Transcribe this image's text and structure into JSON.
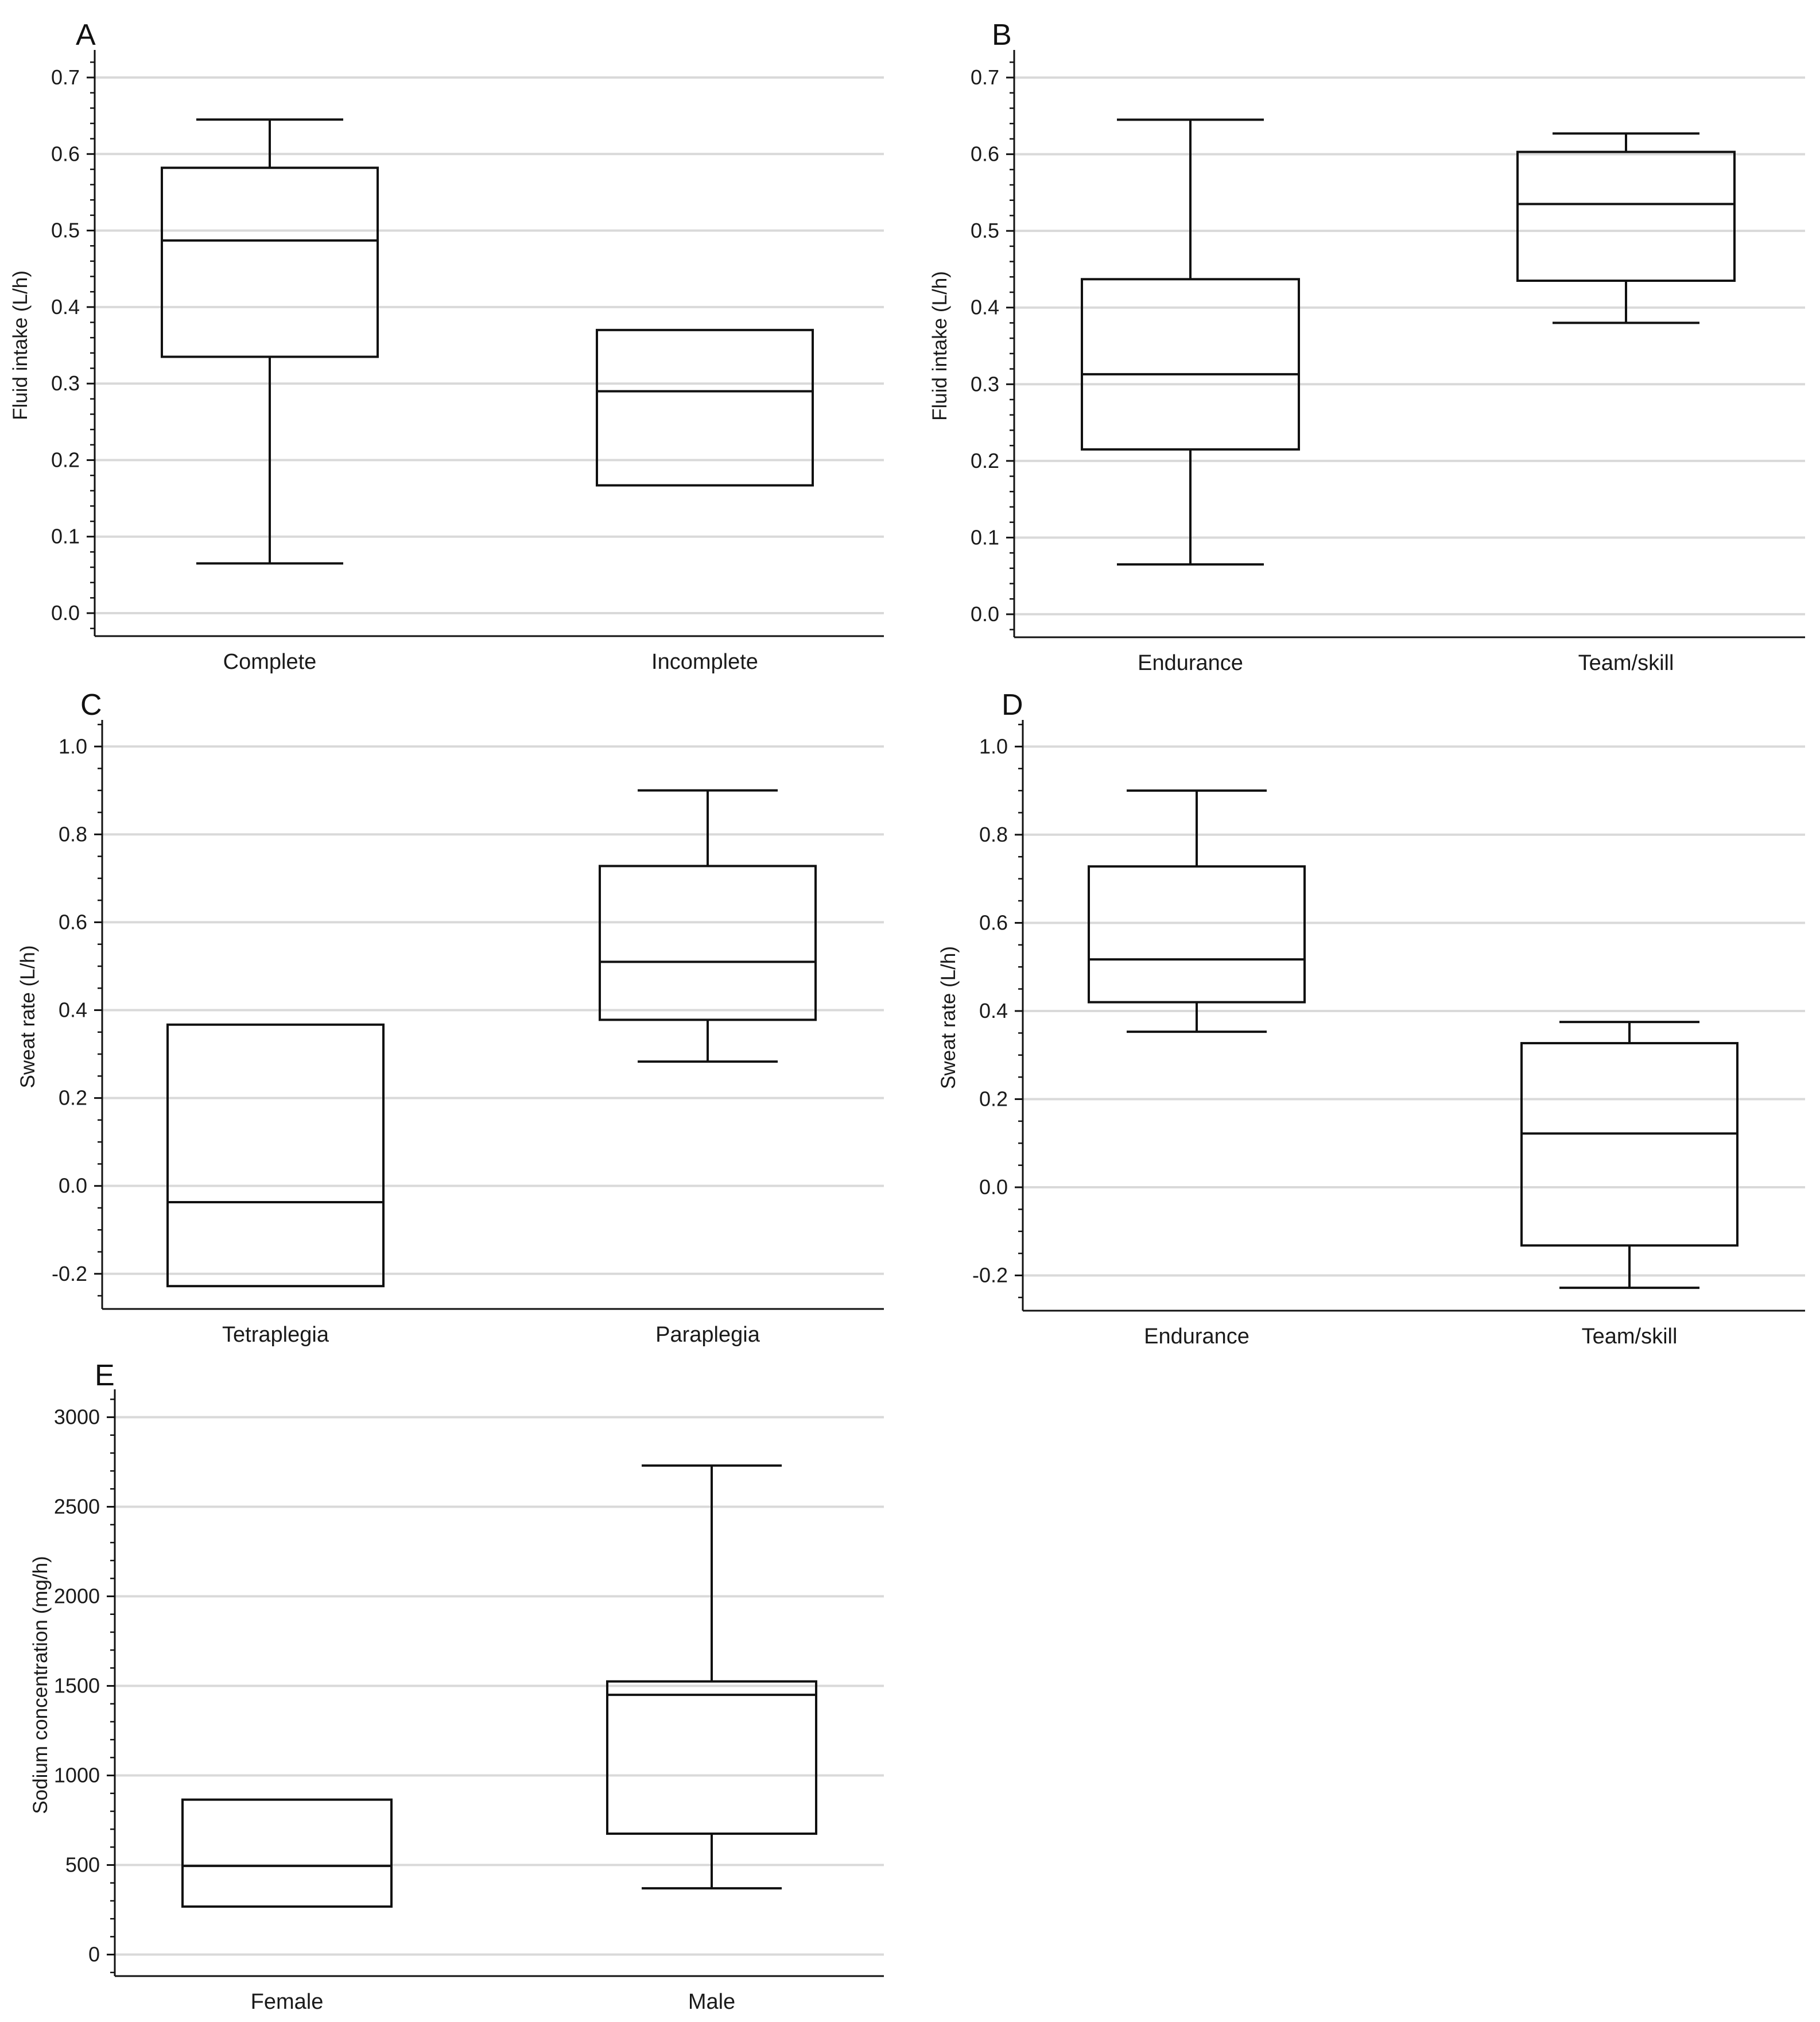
{
  "figure": {
    "colors": {
      "box_stroke": "#111111",
      "gridline": "#d9d9d9",
      "axis": "#111111"
    }
  },
  "chart_data": [
    {
      "panel": "A",
      "type": "box",
      "ylabel": "Fluid intake (L/h)",
      "categories": [
        "Complete",
        "Incomplete"
      ],
      "ylim": [
        -0.03,
        0.73
      ],
      "yticks": [
        0.0,
        0.1,
        0.2,
        0.3,
        0.4,
        0.5,
        0.6,
        0.7
      ],
      "tick_decimals": 1,
      "minor_per_major": 5,
      "boxes": [
        {
          "category": "Complete",
          "whisker_low": 0.065,
          "q1": 0.335,
          "median": 0.487,
          "q3": 0.582,
          "whisker_high": 0.645
        },
        {
          "category": "Incomplete",
          "whisker_low": 0.167,
          "q1": 0.167,
          "median": 0.29,
          "q3": 0.37,
          "whisker_high": 0.37
        }
      ]
    },
    {
      "panel": "B",
      "type": "box",
      "ylabel": "Fluid intake (L/h)",
      "categories": [
        "Endurance",
        "Team/skill"
      ],
      "ylim": [
        -0.03,
        0.73
      ],
      "yticks": [
        0.0,
        0.1,
        0.2,
        0.3,
        0.4,
        0.5,
        0.6,
        0.7
      ],
      "tick_decimals": 1,
      "minor_per_major": 5,
      "boxes": [
        {
          "category": "Endurance",
          "whisker_low": 0.065,
          "q1": 0.215,
          "median": 0.313,
          "q3": 0.437,
          "whisker_high": 0.645
        },
        {
          "category": "Team/skill",
          "whisker_low": 0.38,
          "q1": 0.435,
          "median": 0.535,
          "q3": 0.603,
          "whisker_high": 0.627
        }
      ]
    },
    {
      "panel": "C",
      "type": "box",
      "ylabel": "Sweat rate (L/h)",
      "categories": [
        "Tetraplegia",
        "Paraplegia"
      ],
      "ylim": [
        -0.28,
        1.05
      ],
      "yticks": [
        -0.2,
        0.0,
        0.2,
        0.4,
        0.6,
        0.8,
        1.0
      ],
      "tick_decimals": 1,
      "minor_per_major": 4,
      "boxes": [
        {
          "category": "Tetraplegia",
          "whisker_low": -0.228,
          "q1": -0.228,
          "median": -0.037,
          "q3": 0.367,
          "whisker_high": 0.367
        },
        {
          "category": "Paraplegia",
          "whisker_low": 0.283,
          "q1": 0.378,
          "median": 0.51,
          "q3": 0.728,
          "whisker_high": 0.9
        }
      ]
    },
    {
      "panel": "D",
      "type": "box",
      "ylabel": "Sweat rate (L/h)",
      "categories": [
        "Endurance",
        "Team/skill"
      ],
      "ylim": [
        -0.28,
        1.05
      ],
      "yticks": [
        -0.2,
        0.0,
        0.2,
        0.4,
        0.6,
        0.8,
        1.0
      ],
      "tick_decimals": 1,
      "minor_per_major": 4,
      "boxes": [
        {
          "category": "Endurance",
          "whisker_low": 0.353,
          "q1": 0.42,
          "median": 0.517,
          "q3": 0.728,
          "whisker_high": 0.9
        },
        {
          "category": "Team/skill",
          "whisker_low": -0.228,
          "q1": -0.132,
          "median": 0.122,
          "q3": 0.327,
          "whisker_high": 0.375
        }
      ]
    },
    {
      "panel": "E",
      "type": "box",
      "ylabel": "Sodium concentration (mg/h)",
      "categories": [
        "Female",
        "Male"
      ],
      "ylim": [
        -120,
        3130
      ],
      "yticks": [
        0,
        500,
        1000,
        1500,
        2000,
        2500,
        3000
      ],
      "tick_decimals": 0,
      "minor_per_major": 5,
      "boxes": [
        {
          "category": "Female",
          "whisker_low": 268,
          "q1": 268,
          "median": 495,
          "q3": 865,
          "whisker_high": 865
        },
        {
          "category": "Male",
          "whisker_low": 370,
          "q1": 675,
          "median": 1450,
          "q3": 1525,
          "whisker_high": 2730
        }
      ]
    }
  ]
}
